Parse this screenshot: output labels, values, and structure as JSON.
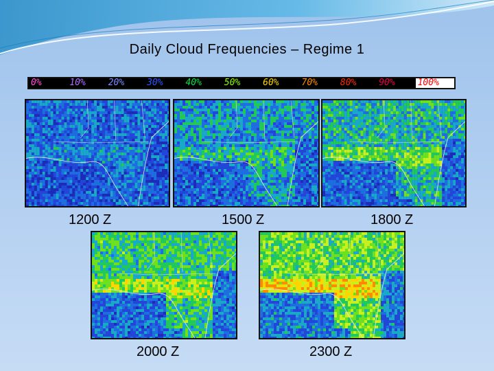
{
  "title": "Daily Cloud Frequencies – Regime 1",
  "colorbar": {
    "labels": [
      "0%",
      "10%",
      "20%",
      "30%",
      "40%",
      "50%",
      "60%",
      "70%",
      "80%",
      "90%",
      "100%"
    ],
    "colors": [
      "#ff4fd8",
      "#b06cff",
      "#7a8cff",
      "#2a56ff",
      "#10e040",
      "#8cff00",
      "#ffd400",
      "#ff8a00",
      "#ff2a00",
      "#e8004a",
      "#ff0000"
    ]
  },
  "panels": [
    {
      "label": "1200 Z",
      "level": 0.15
    },
    {
      "label": "1500 Z",
      "level": 0.35
    },
    {
      "label": "1800 Z",
      "level": 0.5
    },
    {
      "label": "2000 Z",
      "level": 0.62
    },
    {
      "label": "2300 Z",
      "level": 0.78
    }
  ]
}
